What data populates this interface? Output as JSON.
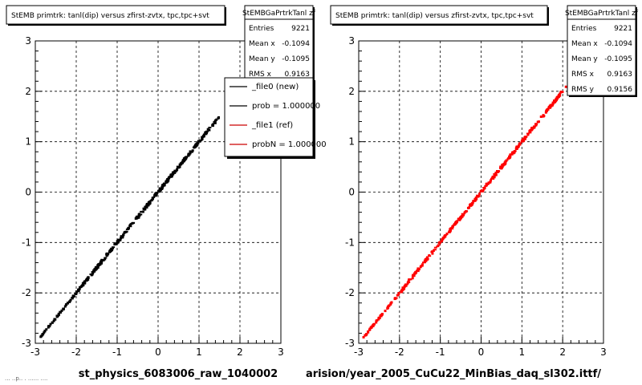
{
  "panels": [
    {
      "title": "StEMB primtrk: tanl(dip) versus zfirst-zvtx, tpc,tpc+svt",
      "xlabel": "st_physics_6083006_raw_1040002",
      "stats": {
        "name": "StEMBGaPrtrkTanl zf",
        "rows": [
          {
            "label": "Entries",
            "value": "9221"
          },
          {
            "label": "Mean x",
            "value": "-0.1094"
          },
          {
            "label": "Mean y",
            "value": "-0.1095"
          },
          {
            "label": "RMS x",
            "value": "0.9163"
          }
        ]
      },
      "legend": [
        {
          "label": "_file0 (new)",
          "color": "#000000"
        },
        {
          "label": "prob = 1.000000",
          "color": "#000000"
        },
        {
          "label": "_file1 (ref)",
          "color": "#cc0000"
        },
        {
          "label": "probN = 1.000000",
          "color": "#cc0000"
        }
      ],
      "marker_color": "#000000"
    },
    {
      "title": "StEMB primtrk: tanl(dip) versus zfirst-zvtx, tpc,tpc+svt",
      "xlabel": "arision/year_2005_CuCu22_MinBias_daq_sl302.ittf/",
      "stats": {
        "name": "StEMBGaPrtrkTanl zf",
        "rows": [
          {
            "label": "Entries",
            "value": "9221"
          },
          {
            "label": "Mean x",
            "value": "-0.1094"
          },
          {
            "label": "Mean y",
            "value": "-0.1095"
          },
          {
            "label": "RMS x",
            "value": "0.9163"
          },
          {
            "label": "RMS y",
            "value": "0.9156"
          }
        ]
      },
      "legend": [],
      "marker_color": "#ff0000"
    }
  ],
  "footer_text": "... ..p.. . ...... ....",
  "chart_data": [
    {
      "type": "scatter",
      "title": "StEMB primtrk: tanl(dip) versus zfirst-zvtx, tpc,tpc+svt",
      "xlabel": "st_physics_6083006_raw_1040002",
      "ylabel": "",
      "xlim": [
        -3,
        3
      ],
      "ylim": [
        -3,
        3
      ],
      "xticks": [
        "-3",
        "-2",
        "-1",
        "0",
        "1",
        "2",
        "3"
      ],
      "yticks": [
        "-3",
        "-2",
        "-1",
        "0",
        "1",
        "2",
        "3"
      ],
      "grid": true,
      "series": [
        {
          "name": "_file0 (new)",
          "x_range": [
            -2.9,
            1.5
          ],
          "relation": "y = x",
          "color": "#000000"
        }
      ]
    },
    {
      "type": "scatter",
      "title": "StEMB primtrk: tanl(dip) versus zfirst-zvtx, tpc,tpc+svt",
      "xlabel": "arision/year_2005_CuCu22_MinBias_daq_sl302.ittf/",
      "ylabel": "",
      "xlim": [
        -3,
        3
      ],
      "ylim": [
        -3,
        3
      ],
      "xticks": [
        "-3",
        "-2",
        "-1",
        "0",
        "1",
        "2",
        "3"
      ],
      "yticks": [
        "-3",
        "-2",
        "-1",
        "0",
        "1",
        "2",
        "3"
      ],
      "grid": true,
      "series": [
        {
          "name": "_file1 (ref)",
          "x_range": [
            -2.9,
            2.1
          ],
          "relation": "y = x",
          "color": "#ff0000"
        }
      ]
    }
  ]
}
